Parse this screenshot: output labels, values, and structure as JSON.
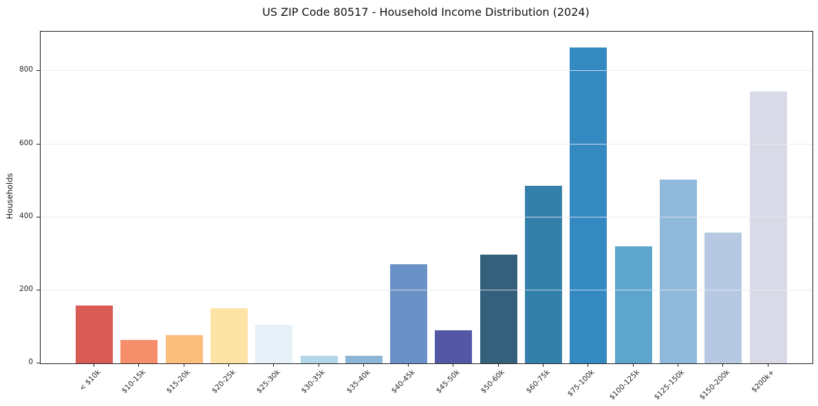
{
  "figure": {
    "title": "US ZIP Code 80517 - Household Income Distribution (2024)"
  },
  "chart_data": {
    "type": "bar",
    "title": "US ZIP Code 80517 - Household Income Distribution (2024)",
    "xlabel": "",
    "ylabel": "Households",
    "categories": [
      "< $10k",
      "$10-15k",
      "$15-20k",
      "$20-25k",
      "$25-30k",
      "$30-35k",
      "$35-40k",
      "$40-45k",
      "$45-50k",
      "$50-60k",
      "$60-75k",
      "$75-100k",
      "$100-125k",
      "$125-150k",
      "$150-200k",
      "$200k+"
    ],
    "values": [
      158,
      65,
      78,
      150,
      106,
      20,
      20,
      272,
      90,
      297,
      486,
      865,
      320,
      503,
      358,
      745
    ],
    "bar_colors": [
      "#d85c55",
      "#f58e6b",
      "#fbbe7b",
      "#fde4a4",
      "#e7f1f8",
      "#b5d5e9",
      "#8cb6d8",
      "#6b92c6",
      "#5456a6",
      "#35607b",
      "#3381aa",
      "#348ac0",
      "#5ea5cd",
      "#90b8da",
      "#b7c9e2",
      "#d8dae7"
    ],
    "ylim": [
      0,
      908
    ],
    "yticks": [
      0,
      200,
      400,
      600,
      800
    ],
    "grid": "horizontal-only, drawn above bars",
    "legend": "none",
    "background_color": "#ffffff",
    "gridline_color": "#e9e9f1",
    "spine_color": "#1a1a1a",
    "tick_label_color": "#262626"
  }
}
